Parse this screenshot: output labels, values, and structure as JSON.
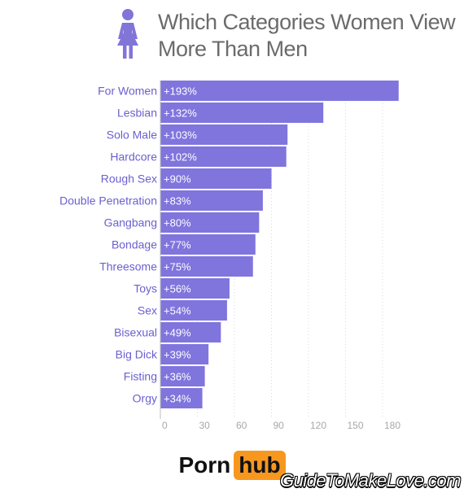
{
  "chart_data": {
    "type": "bar",
    "orientation": "horizontal",
    "title": "Which Categories Women View More Than Men",
    "title_lines": [
      "Which Categories Women View",
      "More Than Men"
    ],
    "categories": [
      "For Women",
      "Lesbian",
      "Solo Male",
      "Hardcore",
      "Rough Sex",
      "Double Penetration",
      "Gangbang",
      "Bondage",
      "Threesome",
      "Toys",
      "Sex",
      "Bisexual",
      "Big Dick",
      "Fisting",
      "Orgy"
    ],
    "values": [
      193,
      132,
      103,
      102,
      90,
      83,
      80,
      77,
      75,
      56,
      54,
      49,
      39,
      36,
      34
    ],
    "data_labels": [
      "+193%",
      "+132%",
      "+103%",
      "+102%",
      "+90%",
      "+83%",
      "+80%",
      "+77%",
      "+75%",
      "+56%",
      "+54%",
      "+49%",
      "+39%",
      "+36%",
      "+34%"
    ],
    "xticks": [
      0,
      30,
      60,
      90,
      120,
      150,
      180
    ],
    "xlim": [
      0,
      195
    ],
    "xlabel": "",
    "ylabel": "",
    "grid": true,
    "bar_color": "#7f75dd"
  },
  "header": {
    "icon": "woman-icon",
    "icon_color": "#8275d8"
  },
  "logo": {
    "part1": "Porn",
    "part2": "hub",
    "accent": "#f7971e"
  },
  "watermark": "GuideToMakeLove.com"
}
